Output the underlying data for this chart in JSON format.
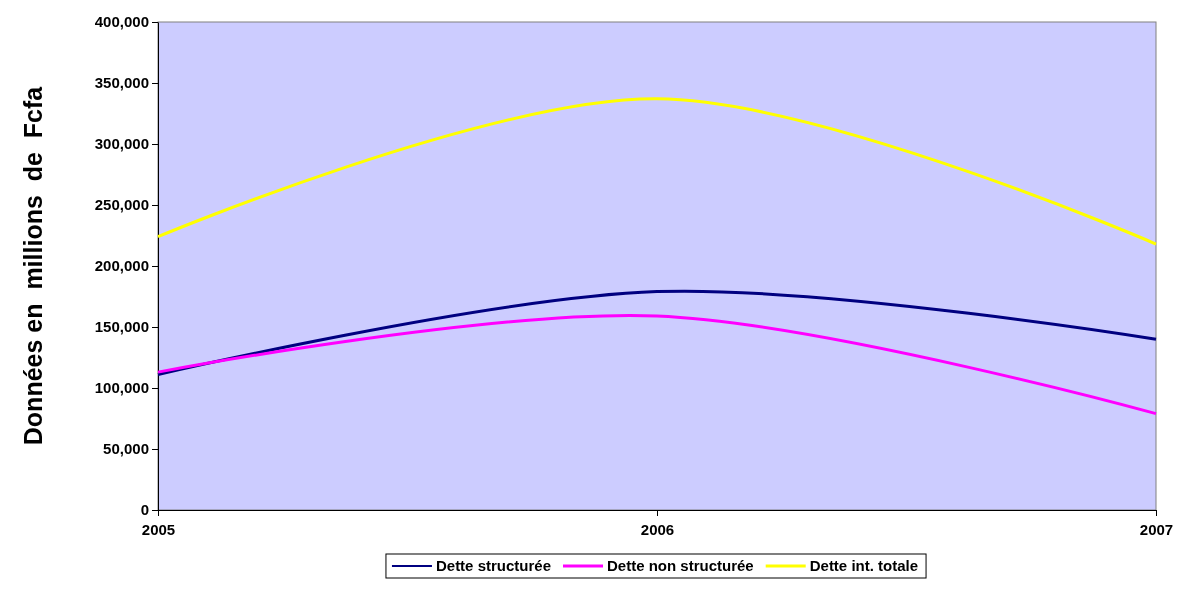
{
  "chart_data": {
    "type": "line",
    "ylabel": "Données en  millions  de  Fcfa",
    "x": [
      2005,
      2006,
      2007
    ],
    "xlim": [
      2005,
      2007
    ],
    "xticks": [
      2005,
      2006,
      2007
    ],
    "ylim": [
      0,
      400000
    ],
    "yticks": [
      {
        "value": 0,
        "label": "0"
      },
      {
        "value": 50000,
        "label": "50,000"
      },
      {
        "value": 100000,
        "label": "100,000"
      },
      {
        "value": 150000,
        "label": "150,000"
      },
      {
        "value": 200000,
        "label": "200,000"
      },
      {
        "value": 250000,
        "label": "250,000"
      },
      {
        "value": 300000,
        "label": "300,000"
      },
      {
        "value": 350000,
        "label": "350,000"
      },
      {
        "value": 400000,
        "label": "400,000"
      }
    ],
    "grid": false,
    "legend": "bottom",
    "marker": "none",
    "line_style": "solid",
    "series": [
      {
        "name": "Dette structurée",
        "color": "#000080",
        "values": [
          111000,
          179000,
          140000
        ]
      },
      {
        "name": "Dette non structurée",
        "color": "#ff00ff",
        "values": [
          113000,
          159000,
          79000
        ]
      },
      {
        "name": "Dette int. totale",
        "color": "#ffff00",
        "values": [
          224000,
          337000,
          218000
        ]
      }
    ]
  }
}
